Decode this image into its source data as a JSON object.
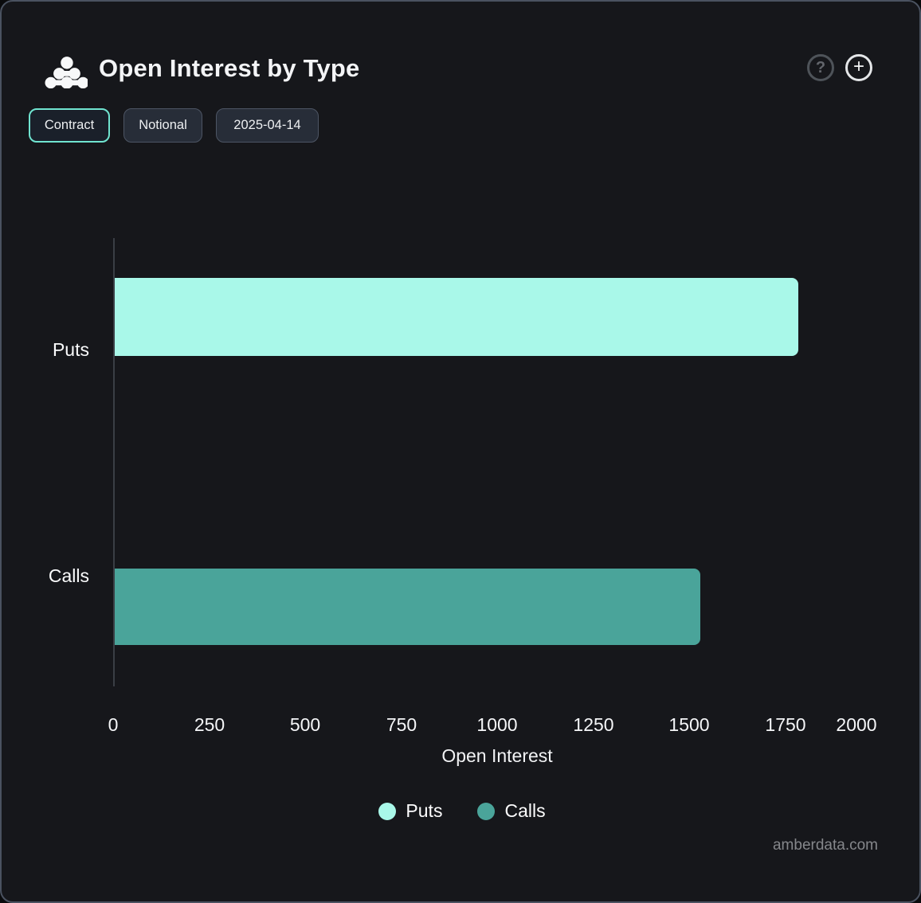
{
  "header": {
    "title": "Open Interest by Type",
    "help_label": "?",
    "add_label": "+"
  },
  "toolbar": {
    "buttons": [
      {
        "label": "Contract",
        "active": true
      },
      {
        "label": "Notional",
        "active": false
      },
      {
        "label": "2025-04-14",
        "active": false
      }
    ]
  },
  "chart_data": {
    "type": "bar",
    "orientation": "horizontal",
    "title": "Open Interest by Type",
    "categories": [
      "Puts",
      "Calls"
    ],
    "series": [
      {
        "name": "Puts",
        "value": 1780,
        "color": "#a9f8e9"
      },
      {
        "name": "Calls",
        "value": 1525,
        "color": "#4aa49a"
      }
    ],
    "xlabel": "Open Interest",
    "xlim": [
      0,
      2000
    ],
    "xticks": [
      0,
      250,
      500,
      750,
      1000,
      1250,
      1500,
      1750,
      2000
    ],
    "grid": false,
    "legend": [
      "Puts",
      "Calls"
    ],
    "legend_position": "bottom"
  },
  "footer": {
    "watermark": "amberdata.com"
  },
  "colors": {
    "background": "#16171b",
    "card_border": "#4a5260",
    "accent": "#70e4d0",
    "puts": "#a9f8e9",
    "calls": "#4aa49a"
  }
}
